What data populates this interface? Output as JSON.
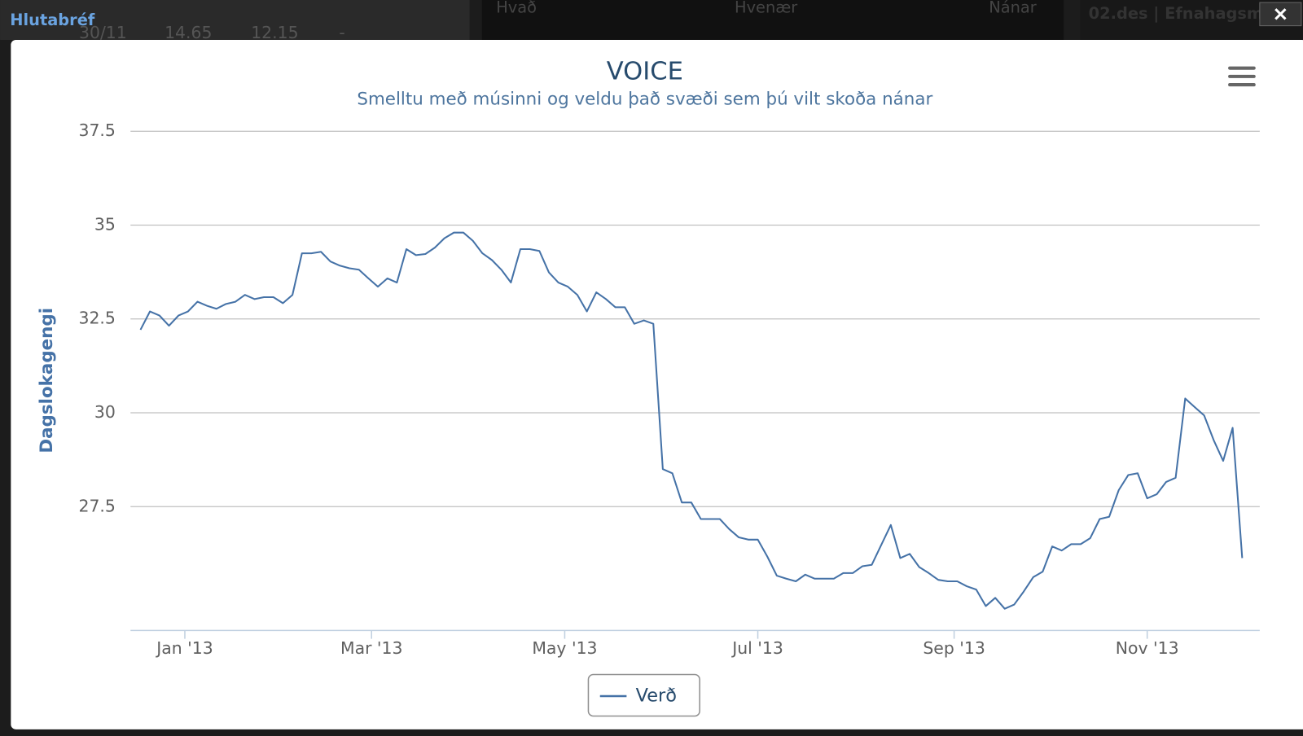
{
  "background": {
    "panel_title": "Hlutabréf",
    "row": [
      "30/11",
      "14.65",
      "12.15",
      "-"
    ],
    "columns": [
      "Hvað",
      "Hvenær",
      "Nánar"
    ],
    "news": "02.des | Efnahagsm"
  },
  "chart_data": {
    "type": "line",
    "title": "VOICE",
    "subtitle": "Smelltu með músinni og veldu það svæði sem þú vilt skoða nánar",
    "y_label": "Dagslokagengi",
    "series": [
      {
        "name": "Verð",
        "color": "#4572a7",
        "values": [
          32.21,
          32.7,
          32.59,
          32.32,
          32.59,
          32.7,
          32.96,
          32.85,
          32.77,
          32.9,
          32.96,
          33.14,
          33.03,
          33.08,
          33.08,
          32.92,
          33.14,
          34.25,
          34.25,
          34.29,
          34.03,
          33.92,
          33.85,
          33.81,
          33.58,
          33.36,
          33.58,
          33.47,
          34.36,
          34.2,
          34.23,
          34.4,
          34.65,
          34.8,
          34.8,
          34.58,
          34.25,
          34.07,
          33.81,
          33.47,
          34.36,
          34.36,
          34.31,
          33.74,
          33.47,
          33.36,
          33.14,
          32.7,
          33.21,
          33.03,
          32.81,
          32.81,
          32.37,
          32.46,
          32.37,
          28.5,
          28.39,
          27.61,
          27.61,
          27.17,
          27.17,
          27.17,
          26.9,
          26.68,
          26.62,
          26.62,
          26.17,
          25.66,
          25.58,
          25.51,
          25.69,
          25.58,
          25.58,
          25.58,
          25.73,
          25.73,
          25.91,
          25.95,
          26.48,
          27.01,
          26.13,
          26.24,
          25.89,
          25.73,
          25.55,
          25.51,
          25.51,
          25.38,
          25.29,
          24.85,
          25.07,
          24.78,
          24.89,
          25.24,
          25.62,
          25.77,
          26.44,
          26.33,
          26.5,
          26.5,
          26.66,
          27.17,
          27.23,
          27.94,
          28.34,
          28.39,
          27.72,
          27.83,
          28.16,
          28.27,
          30.38,
          30.15,
          29.93,
          29.27,
          28.72,
          29.6,
          26.13
        ]
      }
    ],
    "xlim": [
      -1.05,
      117.85
    ],
    "xticks": [
      {
        "value": 4.67,
        "label": "Jan '13"
      },
      {
        "value": 24.33,
        "label": "Mar '13"
      },
      {
        "value": 44.67,
        "label": "May '13"
      },
      {
        "value": 65,
        "label": "Jul '13"
      },
      {
        "value": 85.67,
        "label": "Sep '13"
      },
      {
        "value": 106,
        "label": "Nov '13"
      }
    ],
    "ylim": [
      24.2,
      37.5
    ],
    "yticks": [
      27.5,
      30,
      32.5,
      35,
      37.5
    ],
    "grid": true,
    "legend": "bottom"
  }
}
